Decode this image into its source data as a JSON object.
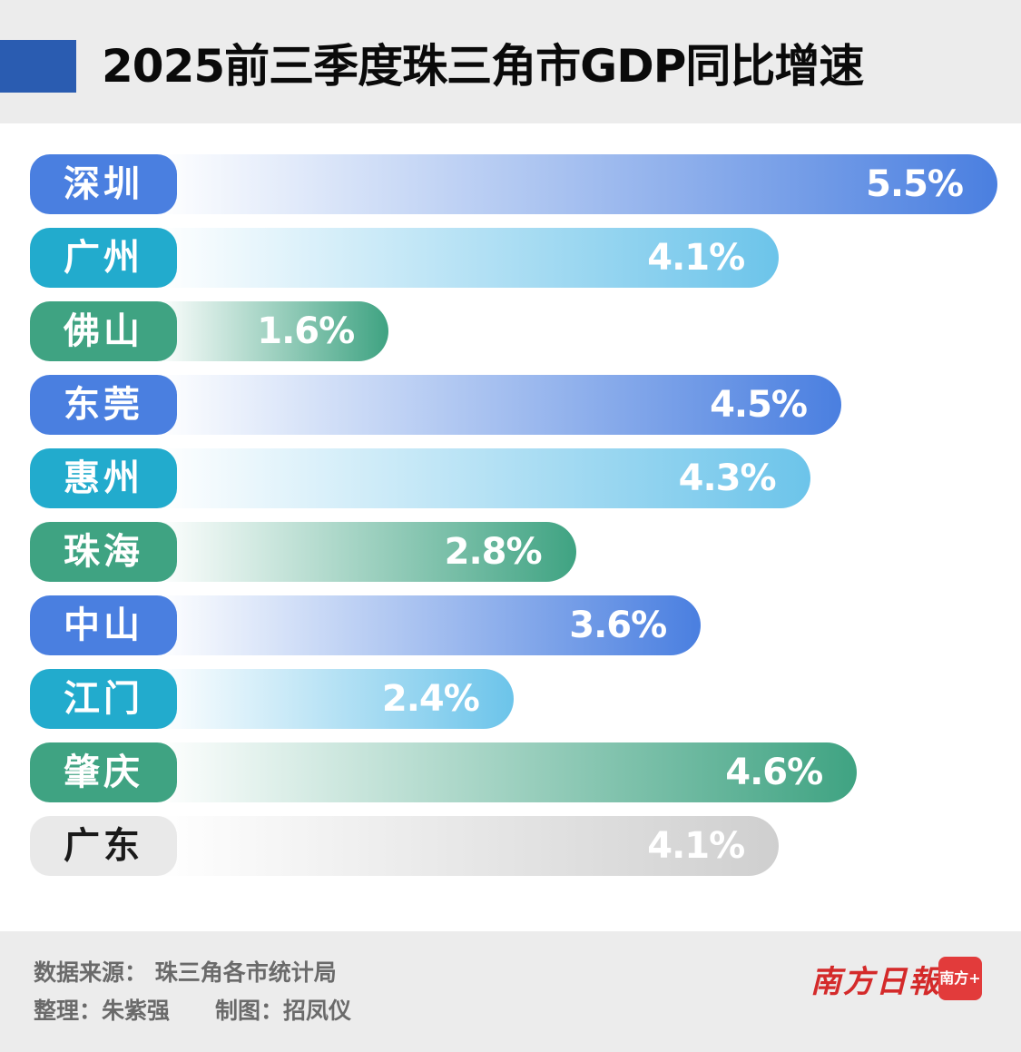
{
  "header": {
    "title": "2025前三季度珠三角市GDP同比增速",
    "accent_color": "#2a5cb1"
  },
  "chart_data": {
    "type": "bar",
    "orientation": "horizontal",
    "title": "2025前三季度珠三角市GDP同比增速",
    "xlabel": "",
    "ylabel": "",
    "unit": "%",
    "xlim": [
      0,
      5.5
    ],
    "grid": false,
    "categories": [
      "深圳",
      "广州",
      "佛山",
      "东莞",
      "惠州",
      "珠海",
      "中山",
      "江门",
      "肇庆",
      "广东"
    ],
    "values": [
      5.5,
      4.1,
      1.6,
      4.5,
      4.3,
      2.8,
      3.6,
      2.4,
      4.6,
      4.1
    ],
    "labels": [
      "5.5%",
      "4.1%",
      "1.6%",
      "4.5%",
      "4.3%",
      "2.8%",
      "3.6%",
      "2.4%",
      "4.6%",
      "4.1%"
    ],
    "colors": [
      "#4a7fe0",
      "#22abcd",
      "#3fa382",
      "#4a7fe0",
      "#22abcd",
      "#3fa382",
      "#4a7fe0",
      "#22abcd",
      "#3fa382",
      "#e9e9e9"
    ],
    "bar_end_colors": [
      "#4a7fe0",
      "#6cc4ea",
      "#3fa382",
      "#4a7fe0",
      "#6cc4ea",
      "#3fa382",
      "#4a7fe0",
      "#6cc4ea",
      "#3fa382",
      "#cfcfcf"
    ],
    "label_text_colors": [
      "#ffffff",
      "#ffffff",
      "#ffffff",
      "#ffffff",
      "#ffffff",
      "#ffffff",
      "#ffffff",
      "#ffffff",
      "#ffffff",
      "#1a1a1a"
    ],
    "value_outside_colors": [
      "#ffffff",
      "#ffffff",
      "#3fa382",
      "#ffffff",
      "#ffffff",
      "#ffffff",
      "#ffffff",
      "#ffffff",
      "#ffffff",
      "#ffffff"
    ]
  },
  "footer": {
    "source": "数据来源： 珠三角各市统计局",
    "credits": "整理：朱紫强　　制图：招凤仪",
    "logo_text": "南方日報",
    "app_icon_text": "南方+"
  }
}
